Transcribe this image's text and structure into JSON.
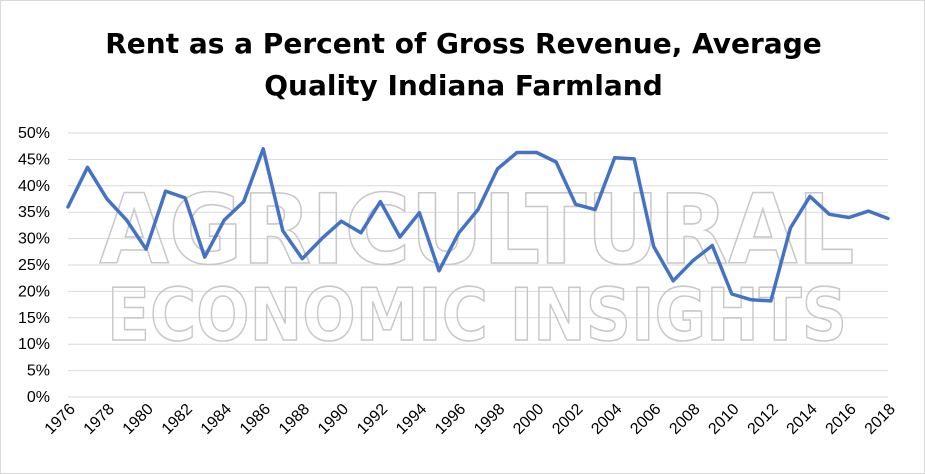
{
  "chart_data": {
    "type": "line",
    "title_lines": [
      "Rent as a Percent of Gross Revenue, Average",
      "Quality Indiana Farmland"
    ],
    "xlabel": "",
    "ylabel": "",
    "ylim": [
      0,
      50
    ],
    "y_ticks": [
      "0%",
      "5%",
      "10%",
      "15%",
      "20%",
      "25%",
      "30%",
      "35%",
      "40%",
      "45%",
      "50%"
    ],
    "x_tick_labels": [
      "1976",
      "1978",
      "1980",
      "1982",
      "1984",
      "1986",
      "1988",
      "1990",
      "1992",
      "1994",
      "1996",
      "1998",
      "2000",
      "2002",
      "2004",
      "2006",
      "2008",
      "2010",
      "2012",
      "2014",
      "2016",
      "2018"
    ],
    "grid": "horizontal",
    "legend": "none",
    "series_color": "#4472C4",
    "series": [
      {
        "x": [
          1976,
          1977,
          1978,
          1979,
          1980,
          1981,
          1982,
          1983,
          1984,
          1985,
          1986,
          1987,
          1988,
          1989,
          1990,
          1991,
          1992,
          1993,
          1994,
          1995,
          1996,
          1997,
          1998,
          1999,
          2000,
          2001,
          2002,
          2003,
          2004,
          2005,
          2006,
          2007,
          2008,
          2009,
          2010,
          2011,
          2012,
          2013,
          2014,
          2015,
          2016,
          2017,
          2018
        ],
        "values": [
          36,
          43.5,
          37.5,
          33.5,
          28,
          39,
          37.7,
          26.5,
          33.5,
          37,
          47,
          31.5,
          26.2,
          30,
          33.3,
          31.1,
          37,
          30.3,
          34.9,
          23.9,
          31,
          35.5,
          43.2,
          46.3,
          46.3,
          44.5,
          36.5,
          35.5,
          45.3,
          45.1,
          28.5,
          22,
          25.8,
          28.7,
          19.5,
          18.4,
          18.2,
          32,
          38,
          34.6,
          34,
          35.2,
          33.8
        ]
      }
    ]
  },
  "watermark": {
    "line1": "AGRICULTURAL",
    "line2": "ECONOMIC INSIGHTS"
  }
}
